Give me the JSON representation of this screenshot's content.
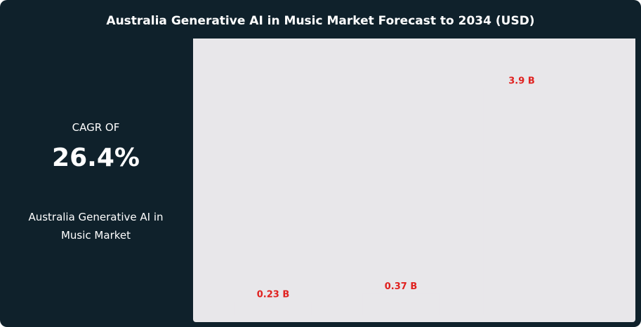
{
  "chart_data": {
    "type": "bar",
    "title": "Australia Generative AI in Music Market Forecast to 2034 (USD)",
    "categories": [
      null,
      null,
      null
    ],
    "values": [
      0.23,
      0.37,
      3.9
    ],
    "value_labels": [
      "0.23 B",
      "0.37 B",
      "3.9 B"
    ],
    "color": "#e8e7ea",
    "label_color": "#e0211f"
  },
  "summary": {
    "label": "CAGR OF",
    "value": "26.4%",
    "description": "Australia Generative AI in Music Market"
  }
}
